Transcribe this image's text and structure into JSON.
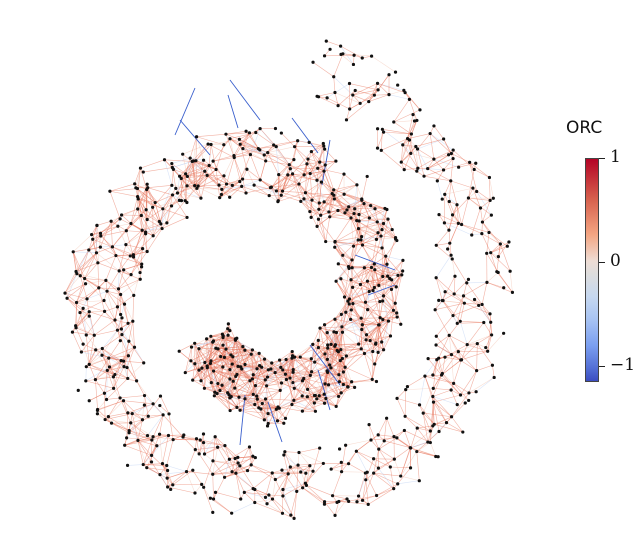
{
  "colorbar": {
    "title": "ORC",
    "ticks": [
      {
        "label": "1",
        "value": 1
      },
      {
        "label": "0",
        "value": 0
      },
      {
        "label": "−1",
        "value": -1
      }
    ],
    "range": [
      -1.15,
      1.0
    ],
    "colormap": "coolwarm",
    "colors": {
      "low": "#3b4cc0",
      "mid": "#dddddd",
      "high": "#b40426"
    }
  },
  "graph": {
    "node_color": "#111111",
    "edge_color_positive": "#e8735a",
    "edge_color_negative": "#3a5fcd"
  }
}
